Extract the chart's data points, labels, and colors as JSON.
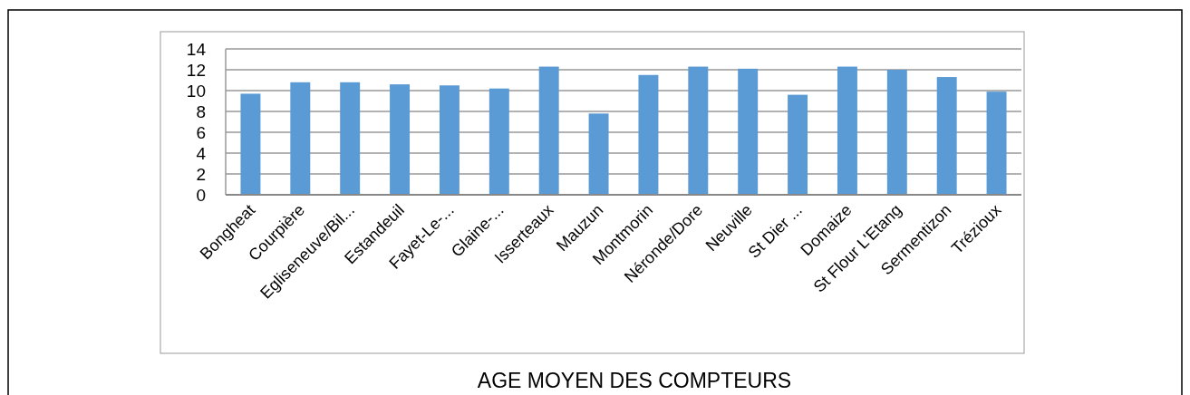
{
  "chart_data": {
    "type": "bar",
    "title": "AGE MOYEN DES COMPTEURS",
    "categories": [
      "Bongheat",
      "Courpière",
      "Egliseneuve/Bil...",
      "Estandeuil",
      "Fayet-Le-...",
      "Glaine-...",
      "Isserteaux",
      "Mauzun",
      "Montmorin",
      "Néronde/Dore",
      "Neuville",
      "St Dier ...",
      "Domaize",
      "St Flour L'Etang",
      "Sermentizon",
      "Trézioux"
    ],
    "values": [
      9.7,
      10.8,
      10.8,
      10.6,
      10.5,
      10.2,
      12.3,
      7.8,
      11.5,
      12.3,
      12.1,
      9.6,
      12.3,
      12.0,
      11.3,
      9.9
    ],
    "color": "#5b9bd5",
    "ylim": [
      0,
      14
    ],
    "yticks": [
      0,
      2,
      4,
      6,
      8,
      10,
      12,
      14
    ],
    "grid": "y"
  }
}
